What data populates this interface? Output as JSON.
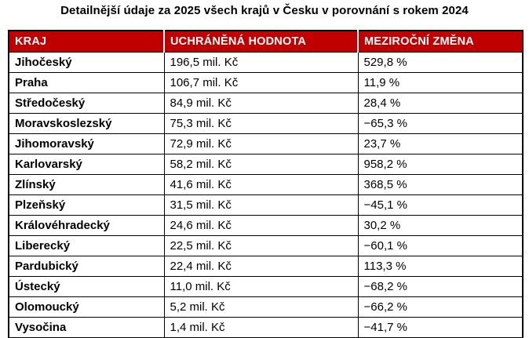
{
  "title": "Detailnější údaje za 2025 všech krajů v Česku v porovnání s rokem 2024",
  "colors": {
    "header_bg": "#c00000",
    "header_text": "#ffffff",
    "body_text": "#000000",
    "border": "#000000"
  },
  "chart_data": {
    "type": "table",
    "title": "Detailnější údaje za 2025 všech krajů v Česku v porovnání s rokem 2024",
    "columns": [
      "KRAJ",
      "UCHRÁNĚNÁ HODNOTA",
      "MEZIROČNÍ ZMĚNA"
    ],
    "rows": [
      {
        "kraj": "Jihočeský",
        "hodnota": "196,5 mil. Kč",
        "zmena": "529,8 %",
        "hodnota_mil_kc": 196.5,
        "zmena_pct": 529.8
      },
      {
        "kraj": "Praha",
        "hodnota": "106,7 mil. Kč",
        "zmena": "11,9 %",
        "hodnota_mil_kc": 106.7,
        "zmena_pct": 11.9
      },
      {
        "kraj": "Středočeský",
        "hodnota": "84,9 mil. Kč",
        "zmena": "28,4 %",
        "hodnota_mil_kc": 84.9,
        "zmena_pct": 28.4
      },
      {
        "kraj": "Moravskoslezský",
        "hodnota": "75,3 mil. Kč",
        "zmena": "−65,3 %",
        "hodnota_mil_kc": 75.3,
        "zmena_pct": -65.3
      },
      {
        "kraj": "Jihomoravský",
        "hodnota": "72,9 mil. Kč",
        "zmena": "23,7 %",
        "hodnota_mil_kc": 72.9,
        "zmena_pct": 23.7
      },
      {
        "kraj": "Karlovarský",
        "hodnota": "58,2 mil. Kč",
        "zmena": "958,2 %",
        "hodnota_mil_kc": 58.2,
        "zmena_pct": 958.2
      },
      {
        "kraj": "Zlínský",
        "hodnota": "41,6 mil. Kč",
        "zmena": "368,5 %",
        "hodnota_mil_kc": 41.6,
        "zmena_pct": 368.5
      },
      {
        "kraj": "Plzeňský",
        "hodnota": "31,5 mil. Kč",
        "zmena": "−45,1 %",
        "hodnota_mil_kc": 31.5,
        "zmena_pct": -45.1
      },
      {
        "kraj": "Královéhradecký",
        "hodnota": "24,6 mil. Kč",
        "zmena": "30,2 %",
        "hodnota_mil_kc": 24.6,
        "zmena_pct": 30.2
      },
      {
        "kraj": "Liberecký",
        "hodnota": "22,5 mil. Kč",
        "zmena": "−60,1 %",
        "hodnota_mil_kc": 22.5,
        "zmena_pct": -60.1
      },
      {
        "kraj": "Pardubický",
        "hodnota": "22,4 mil. Kč",
        "zmena": "113,3 %",
        "hodnota_mil_kc": 22.4,
        "zmena_pct": 113.3
      },
      {
        "kraj": "Ústecký",
        "hodnota": "11,0 mil. Kč",
        "zmena": "−68,2 %",
        "hodnota_mil_kc": 11.0,
        "zmena_pct": -68.2
      },
      {
        "kraj": "Olomoucký",
        "hodnota": "5,2 mil. Kč",
        "zmena": "−66,2 %",
        "hodnota_mil_kc": 5.2,
        "zmena_pct": -66.2
      },
      {
        "kraj": "Vysočina",
        "hodnota": "1,4 mil. Kč",
        "zmena": "−41,7 %",
        "hodnota_mil_kc": 1.4,
        "zmena_pct": -41.7
      }
    ]
  }
}
